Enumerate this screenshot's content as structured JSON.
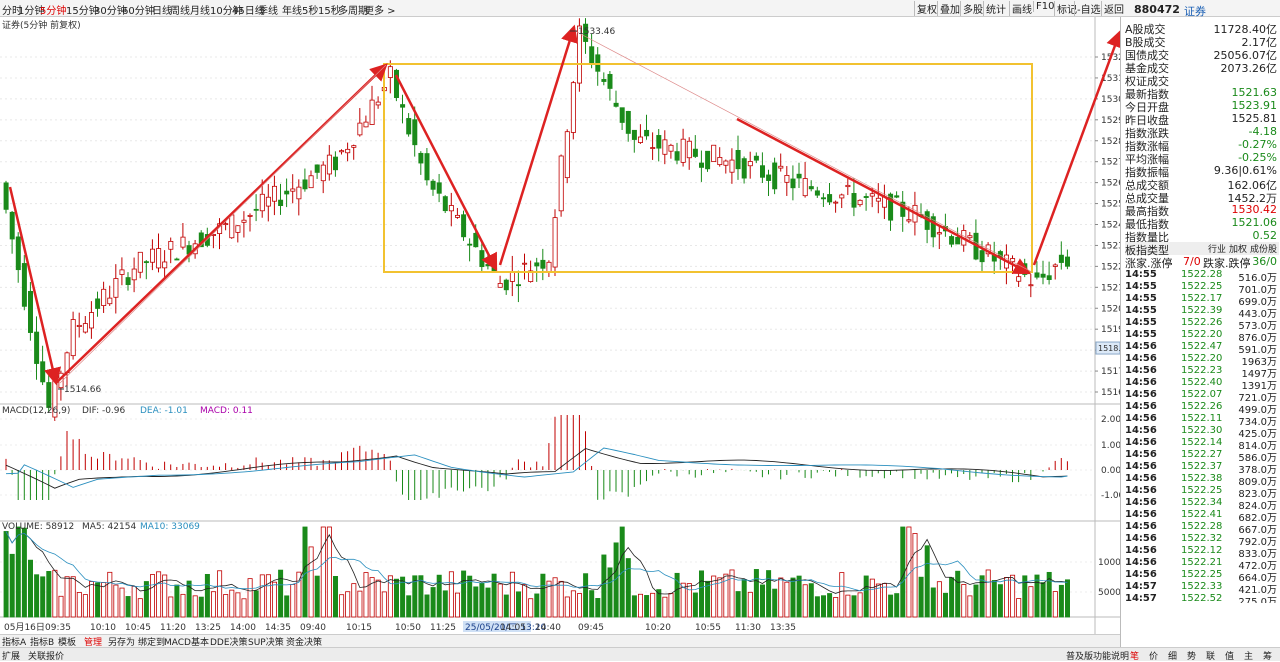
{
  "toolbar": {
    "periods": [
      "分时",
      "1分钟",
      "5分钟",
      "15分钟",
      "30分钟",
      "60分钟",
      "日线",
      "周线",
      "月线",
      "10分钟",
      "45日线",
      "季线",
      "年线",
      "5秒",
      "15秒",
      "多周期",
      "更多 >"
    ],
    "active_period": "5分钟",
    "right_buttons": [
      "复权",
      "叠加",
      "多股",
      "统计",
      "画线",
      "F10",
      "标记",
      "-自选",
      "返回"
    ]
  },
  "symbol": {
    "code": "880472",
    "name": "证券"
  },
  "chart": {
    "title": "证券(5分钟 前复权)",
    "price_ticks": [
      "1532",
      "1531",
      "1530",
      "1529",
      "1528",
      "1527",
      "1526",
      "1525",
      "1524",
      "1523",
      "1522",
      "1521",
      "1520",
      "1519",
      "1518",
      "1517",
      "1516"
    ],
    "current_price_tag": "1518.1",
    "high_label": "1533.46",
    "low_label": "1514.66",
    "macd_legend": {
      "name": "MACD(12,26,9)",
      "dif": "DIF: -0.96",
      "dea": "DEA: -1.01",
      "macd": "MACD: 0.11"
    },
    "macd_ticks": [
      "2.00",
      "1.00",
      "0.00",
      "-1.00"
    ],
    "volume_legend": {
      "name": "VOLUME: 58912",
      "ma5": "MA5: 42154",
      "ma10": "MA10: 33069"
    },
    "volume_ticks": [
      "10000",
      "5000"
    ],
    "time_labels": [
      "05月16日",
      "09:35",
      "10:10",
      "10:45",
      "11:20",
      "13:25",
      "14:00",
      "14:35",
      "09:40",
      "10:15",
      "10:50",
      "11:25",
      "25/05/20/二 13:20",
      "14:05",
      "14:40",
      "09:45",
      "10:20",
      "10:55",
      "11:30",
      "13:35"
    ]
  },
  "bottom_tabs": [
    "指标A",
    "指标B",
    "模板",
    "管理",
    "另存为",
    "绑定到",
    "MACD基本",
    "DDE决策",
    "SUP决策",
    "资金决策"
  ],
  "active_bottom_tab": "管理",
  "info": {
    "rows": [
      {
        "k": "A股成交",
        "v": "11728.40亿",
        "c": "#222"
      },
      {
        "k": "B股成交",
        "v": "2.17亿",
        "c": "#222"
      },
      {
        "k": "国债成交",
        "v": "25056.07亿",
        "c": "#222"
      },
      {
        "k": "基金成交",
        "v": "2073.26亿",
        "c": "#222"
      },
      {
        "k": "权证成交",
        "v": "",
        "c": "#222"
      },
      {
        "k": "最新指数",
        "v": "1521.63",
        "c": "#1a8a1a"
      },
      {
        "k": "今日开盘",
        "v": "1523.91",
        "c": "#1a8a1a"
      },
      {
        "k": "昨日收盘",
        "v": "1525.81",
        "c": "#222"
      },
      {
        "k": "指数涨跌",
        "v": "-4.18",
        "c": "#1a8a1a"
      },
      {
        "k": "指数涨幅",
        "v": "-0.27%",
        "c": "#1a8a1a"
      },
      {
        "k": "平均涨幅",
        "v": "-0.25%",
        "c": "#1a8a1a"
      },
      {
        "k": "指数振幅",
        "v": "9.36|0.61%",
        "c": "#222"
      },
      {
        "k": "总成交额",
        "v": "162.06亿",
        "c": "#222"
      },
      {
        "k": "总成交量",
        "v": "1452.2万",
        "c": "#222"
      },
      {
        "k": "最高指数",
        "v": "1530.42",
        "c": "#d00"
      },
      {
        "k": "最低指数",
        "v": "1521.06",
        "c": "#1a8a1a"
      },
      {
        "k": "指数量比",
        "v": "0.52",
        "c": "#1a8a1a"
      }
    ],
    "board_type": {
      "label": "板指类型",
      "v1": "行业",
      "v2": "加权",
      "v3": "成份股"
    },
    "updown": {
      "up_label": "涨家.涨停",
      "up_val": "7/0",
      "down_label": "跌家.跌停",
      "down_val": "36/0"
    },
    "ticks": [
      {
        "t": "14:55",
        "p": "1522.28",
        "v": "516.0万"
      },
      {
        "t": "14:55",
        "p": "1522.25",
        "v": "701.0万"
      },
      {
        "t": "14:55",
        "p": "1522.17",
        "v": "699.0万"
      },
      {
        "t": "14:55",
        "p": "1522.39",
        "v": "443.0万"
      },
      {
        "t": "14:55",
        "p": "1522.26",
        "v": "573.0万"
      },
      {
        "t": "14:55",
        "p": "1522.20",
        "v": "876.0万"
      },
      {
        "t": "14:56",
        "p": "1522.47",
        "v": "591.0万"
      },
      {
        "t": "14:56",
        "p": "1522.20",
        "v": "1963万"
      },
      {
        "t": "14:56",
        "p": "1522.23",
        "v": "1497万"
      },
      {
        "t": "14:56",
        "p": "1522.40",
        "v": "1391万"
      },
      {
        "t": "14:56",
        "p": "1522.07",
        "v": "721.0万"
      },
      {
        "t": "14:56",
        "p": "1522.26",
        "v": "499.0万"
      },
      {
        "t": "14:56",
        "p": "1522.11",
        "v": "734.0万"
      },
      {
        "t": "14:56",
        "p": "1522.30",
        "v": "425.0万"
      },
      {
        "t": "14:56",
        "p": "1522.14",
        "v": "814.0万"
      },
      {
        "t": "14:56",
        "p": "1522.27",
        "v": "586.0万"
      },
      {
        "t": "14:56",
        "p": "1522.37",
        "v": "378.0万"
      },
      {
        "t": "14:56",
        "p": "1522.38",
        "v": "809.0万"
      },
      {
        "t": "14:56",
        "p": "1522.25",
        "v": "823.0万"
      },
      {
        "t": "14:56",
        "p": "1522.34",
        "v": "824.0万"
      },
      {
        "t": "14:56",
        "p": "1522.41",
        "v": "682.0万"
      },
      {
        "t": "14:56",
        "p": "1522.28",
        "v": "667.0万"
      },
      {
        "t": "14:56",
        "p": "1522.32",
        "v": "792.0万"
      },
      {
        "t": "14:56",
        "p": "1522.12",
        "v": "833.0万"
      },
      {
        "t": "14:56",
        "p": "1522.21",
        "v": "472.0万"
      },
      {
        "t": "14:56",
        "p": "1522.25",
        "v": "664.0万"
      },
      {
        "t": "14:57",
        "p": "1522.33",
        "v": "421.0万"
      },
      {
        "t": "14:57",
        "p": "1522.52",
        "v": "275.0万"
      }
    ]
  },
  "footer": {
    "left": [
      "扩展",
      "关联报价"
    ],
    "right_link": "普及版功能说明",
    "tabs": [
      "笔",
      "价",
      "细",
      "势",
      "联",
      "值",
      "主",
      "筹"
    ]
  },
  "colors": {
    "up": "#c00000",
    "down": "#1a8a1a",
    "box": "#f2c230",
    "arrow": "#d22",
    "dif": "#222",
    "dea": "#2a8fbf"
  }
}
